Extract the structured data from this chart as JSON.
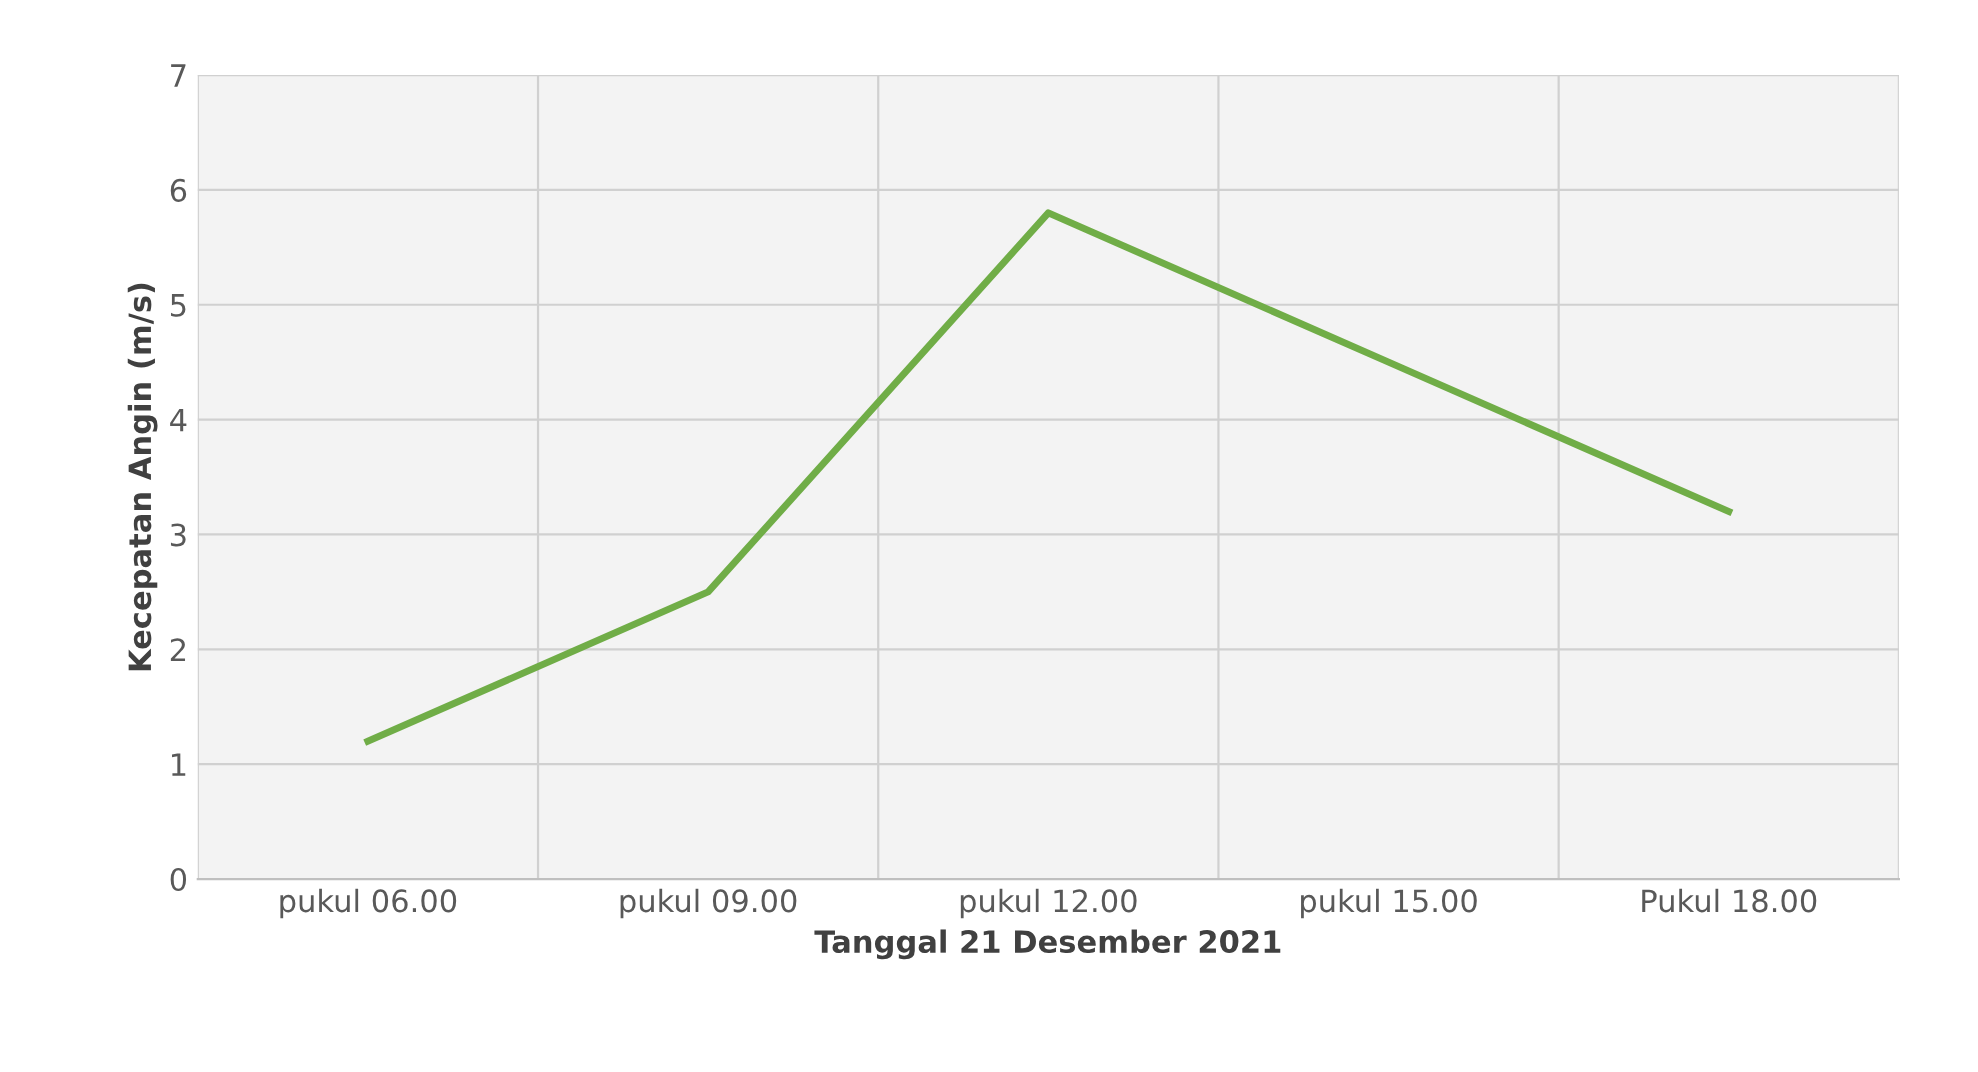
{
  "chart_data": {
    "type": "line",
    "xlabel": "Tanggal 21 Desember 2021",
    "ylabel": "Kecepatan Angin (m/s)",
    "categories": [
      "pukul 06.00",
      "pukul 09.00",
      "pukul 12.00",
      "pukul 15.00",
      "Pukul 18.00"
    ],
    "series": [
      {
        "color": "#70ad47",
        "values": [
          1.2,
          2.5,
          5.8,
          4.5,
          3.2
        ]
      }
    ],
    "ylim": [
      0,
      7
    ],
    "yticks": [
      0,
      1,
      2,
      3,
      4,
      5,
      6,
      7
    ],
    "grid": true,
    "marker": "none",
    "line_style": "solid"
  }
}
